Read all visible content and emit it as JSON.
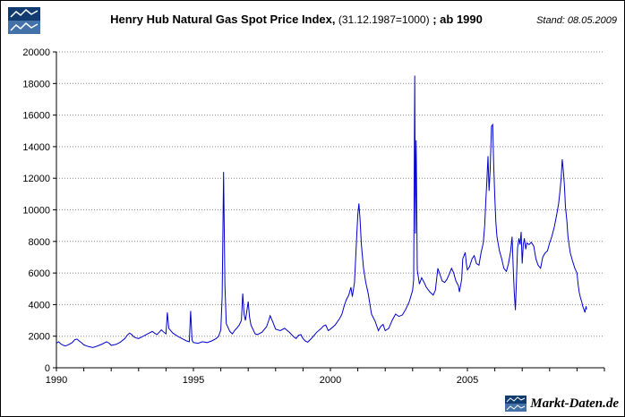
{
  "header": {
    "title_bold": "Henry Hub Natural Gas Spot Price Index,",
    "title_normal": " (31.12.1987=1000)",
    "title_bold2": " ; ab 1990",
    "stand": "Stand: 08.05.2009"
  },
  "footer": {
    "brand": "Markt-Daten.de"
  },
  "colors": {
    "line": "#0000cc",
    "grid": "#888888",
    "axis": "#000000",
    "logo_dark": "#123b70",
    "logo_light": "#4472a8"
  },
  "chart_data": {
    "type": "line",
    "title": "Henry Hub Natural Gas Spot Price Index (31.12.1987=1000), ab 1990",
    "xlabel": "",
    "ylabel": "",
    "xlim": [
      1990,
      2010
    ],
    "ylim": [
      0,
      20000
    ],
    "y_tick_step": 2000,
    "x_minor_step": 1,
    "x_ticks_labeled": [
      1990,
      1995,
      2000,
      2005
    ],
    "grid": "horizontal-dotted",
    "legend": "none",
    "series": [
      {
        "name": "Henry Hub Spot Price Index",
        "color": "#0000cc",
        "points": [
          [
            1990.0,
            1550
          ],
          [
            1990.08,
            1650
          ],
          [
            1990.17,
            1500
          ],
          [
            1990.25,
            1420
          ],
          [
            1990.33,
            1380
          ],
          [
            1990.42,
            1450
          ],
          [
            1990.5,
            1520
          ],
          [
            1990.58,
            1600
          ],
          [
            1990.67,
            1780
          ],
          [
            1990.75,
            1820
          ],
          [
            1990.83,
            1700
          ],
          [
            1990.92,
            1580
          ],
          [
            1991.0,
            1450
          ],
          [
            1991.17,
            1340
          ],
          [
            1991.33,
            1280
          ],
          [
            1991.5,
            1380
          ],
          [
            1991.67,
            1500
          ],
          [
            1991.83,
            1650
          ],
          [
            1991.92,
            1560
          ],
          [
            1992.0,
            1420
          ],
          [
            1992.17,
            1480
          ],
          [
            1992.33,
            1620
          ],
          [
            1992.5,
            1850
          ],
          [
            1992.58,
            2050
          ],
          [
            1992.67,
            2200
          ],
          [
            1992.75,
            2100
          ],
          [
            1992.83,
            1950
          ],
          [
            1992.92,
            1880
          ],
          [
            1993.0,
            1850
          ],
          [
            1993.17,
            2000
          ],
          [
            1993.33,
            2150
          ],
          [
            1993.5,
            2300
          ],
          [
            1993.58,
            2200
          ],
          [
            1993.67,
            2100
          ],
          [
            1993.75,
            2250
          ],
          [
            1993.83,
            2400
          ],
          [
            1993.92,
            2250
          ],
          [
            1994.0,
            2150
          ],
          [
            1994.05,
            3500
          ],
          [
            1994.1,
            2500
          ],
          [
            1994.25,
            2200
          ],
          [
            1994.42,
            2000
          ],
          [
            1994.58,
            1850
          ],
          [
            1994.75,
            1700
          ],
          [
            1994.85,
            1650
          ],
          [
            1994.9,
            3600
          ],
          [
            1994.95,
            1750
          ],
          [
            1995.0,
            1600
          ],
          [
            1995.17,
            1550
          ],
          [
            1995.33,
            1650
          ],
          [
            1995.5,
            1600
          ],
          [
            1995.67,
            1700
          ],
          [
            1995.83,
            1850
          ],
          [
            1995.92,
            2000
          ],
          [
            1996.0,
            2400
          ],
          [
            1996.05,
            4500
          ],
          [
            1996.1,
            12400
          ],
          [
            1996.15,
            5200
          ],
          [
            1996.2,
            2800
          ],
          [
            1996.33,
            2300
          ],
          [
            1996.42,
            2150
          ],
          [
            1996.5,
            2350
          ],
          [
            1996.58,
            2500
          ],
          [
            1996.67,
            2700
          ],
          [
            1996.75,
            3000
          ],
          [
            1996.8,
            4700
          ],
          [
            1996.85,
            3400
          ],
          [
            1996.9,
            3000
          ],
          [
            1996.95,
            3600
          ],
          [
            1997.0,
            4200
          ],
          [
            1997.05,
            3200
          ],
          [
            1997.1,
            2700
          ],
          [
            1997.25,
            2150
          ],
          [
            1997.33,
            2100
          ],
          [
            1997.5,
            2250
          ],
          [
            1997.67,
            2600
          ],
          [
            1997.75,
            3000
          ],
          [
            1997.8,
            3300
          ],
          [
            1997.9,
            2900
          ],
          [
            1998.0,
            2450
          ],
          [
            1998.17,
            2350
          ],
          [
            1998.33,
            2500
          ],
          [
            1998.5,
            2250
          ],
          [
            1998.67,
            1950
          ],
          [
            1998.75,
            1850
          ],
          [
            1998.83,
            2050
          ],
          [
            1998.92,
            2100
          ],
          [
            1999.0,
            1850
          ],
          [
            1999.08,
            1700
          ],
          [
            1999.17,
            1620
          ],
          [
            1999.33,
            1900
          ],
          [
            1999.5,
            2250
          ],
          [
            1999.67,
            2500
          ],
          [
            1999.75,
            2650
          ],
          [
            1999.83,
            2700
          ],
          [
            1999.92,
            2350
          ],
          [
            2000.0,
            2450
          ],
          [
            2000.17,
            2700
          ],
          [
            2000.33,
            3100
          ],
          [
            2000.42,
            3400
          ],
          [
            2000.5,
            3900
          ],
          [
            2000.58,
            4300
          ],
          [
            2000.67,
            4600
          ],
          [
            2000.75,
            5100
          ],
          [
            2000.8,
            4500
          ],
          [
            2000.88,
            5400
          ],
          [
            2000.95,
            8000
          ],
          [
            2001.0,
            9700
          ],
          [
            2001.04,
            10400
          ],
          [
            2001.08,
            9500
          ],
          [
            2001.13,
            7800
          ],
          [
            2001.21,
            6300
          ],
          [
            2001.29,
            5400
          ],
          [
            2001.38,
            4700
          ],
          [
            2001.5,
            3400
          ],
          [
            2001.63,
            2950
          ],
          [
            2001.75,
            2350
          ],
          [
            2001.83,
            2600
          ],
          [
            2001.92,
            2750
          ],
          [
            2002.0,
            2350
          ],
          [
            2002.13,
            2500
          ],
          [
            2002.25,
            3000
          ],
          [
            2002.38,
            3400
          ],
          [
            2002.5,
            3250
          ],
          [
            2002.63,
            3350
          ],
          [
            2002.75,
            3700
          ],
          [
            2002.88,
            4200
          ],
          [
            2003.0,
            4900
          ],
          [
            2003.04,
            5600
          ],
          [
            2003.08,
            18500
          ],
          [
            2003.1,
            8500
          ],
          [
            2003.13,
            14400
          ],
          [
            2003.17,
            6200
          ],
          [
            2003.25,
            5300
          ],
          [
            2003.33,
            5700
          ],
          [
            2003.42,
            5400
          ],
          [
            2003.5,
            5100
          ],
          [
            2003.63,
            4800
          ],
          [
            2003.75,
            4600
          ],
          [
            2003.83,
            4900
          ],
          [
            2003.92,
            6300
          ],
          [
            2004.0,
            5900
          ],
          [
            2004.08,
            5500
          ],
          [
            2004.17,
            5400
          ],
          [
            2004.25,
            5600
          ],
          [
            2004.33,
            5900
          ],
          [
            2004.42,
            6300
          ],
          [
            2004.5,
            6000
          ],
          [
            2004.58,
            5500
          ],
          [
            2004.67,
            5200
          ],
          [
            2004.71,
            4800
          ],
          [
            2004.79,
            5600
          ],
          [
            2004.83,
            6900
          ],
          [
            2004.92,
            7300
          ],
          [
            2004.96,
            6600
          ],
          [
            2005.0,
            6200
          ],
          [
            2005.08,
            6400
          ],
          [
            2005.17,
            6900
          ],
          [
            2005.25,
            7100
          ],
          [
            2005.33,
            6600
          ],
          [
            2005.42,
            6500
          ],
          [
            2005.5,
            7300
          ],
          [
            2005.58,
            7900
          ],
          [
            2005.63,
            9000
          ],
          [
            2005.67,
            10500
          ],
          [
            2005.71,
            11800
          ],
          [
            2005.75,
            13400
          ],
          [
            2005.79,
            11200
          ],
          [
            2005.83,
            12500
          ],
          [
            2005.88,
            15300
          ],
          [
            2005.92,
            15400
          ],
          [
            2005.96,
            12800
          ],
          [
            2006.0,
            10800
          ],
          [
            2006.04,
            9200
          ],
          [
            2006.08,
            8300
          ],
          [
            2006.17,
            7400
          ],
          [
            2006.25,
            6900
          ],
          [
            2006.33,
            6300
          ],
          [
            2006.42,
            6100
          ],
          [
            2006.5,
            6600
          ],
          [
            2006.58,
            7400
          ],
          [
            2006.63,
            8300
          ],
          [
            2006.67,
            6400
          ],
          [
            2006.71,
            4800
          ],
          [
            2006.75,
            3650
          ],
          [
            2006.79,
            5600
          ],
          [
            2006.83,
            7600
          ],
          [
            2006.88,
            8200
          ],
          [
            2006.92,
            7800
          ],
          [
            2006.96,
            8600
          ],
          [
            2007.0,
            6600
          ],
          [
            2007.04,
            7800
          ],
          [
            2007.08,
            8200
          ],
          [
            2007.13,
            7500
          ],
          [
            2007.17,
            7900
          ],
          [
            2007.25,
            7800
          ],
          [
            2007.33,
            7950
          ],
          [
            2007.42,
            7700
          ],
          [
            2007.5,
            6900
          ],
          [
            2007.58,
            6500
          ],
          [
            2007.67,
            6300
          ],
          [
            2007.75,
            7000
          ],
          [
            2007.83,
            7250
          ],
          [
            2007.92,
            7400
          ],
          [
            2008.0,
            7900
          ],
          [
            2008.08,
            8300
          ],
          [
            2008.17,
            8900
          ],
          [
            2008.25,
            9600
          ],
          [
            2008.33,
            10400
          ],
          [
            2008.38,
            11200
          ],
          [
            2008.42,
            12000
          ],
          [
            2008.46,
            13200
          ],
          [
            2008.5,
            12500
          ],
          [
            2008.54,
            11600
          ],
          [
            2008.58,
            10200
          ],
          [
            2008.63,
            9300
          ],
          [
            2008.67,
            8300
          ],
          [
            2008.71,
            7800
          ],
          [
            2008.75,
            7300
          ],
          [
            2008.83,
            6800
          ],
          [
            2008.92,
            6300
          ],
          [
            2009.0,
            6000
          ],
          [
            2009.04,
            5300
          ],
          [
            2009.08,
            4800
          ],
          [
            2009.13,
            4400
          ],
          [
            2009.17,
            4200
          ],
          [
            2009.21,
            3900
          ],
          [
            2009.25,
            3700
          ],
          [
            2009.29,
            3500
          ],
          [
            2009.33,
            3900
          ],
          [
            2009.35,
            3700
          ]
        ]
      }
    ]
  }
}
